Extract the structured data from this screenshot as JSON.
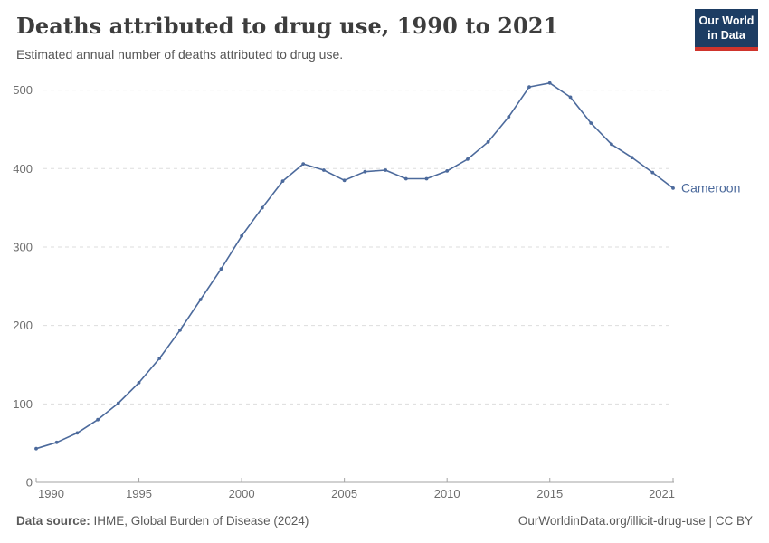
{
  "header": {
    "title": "Deaths attributed to drug use, 1990 to 2021",
    "subtitle": "Estimated annual number of deaths attributed to drug use.",
    "logo_line1": "Our World",
    "logo_line2": "in Data"
  },
  "footer": {
    "source_label": "Data source:",
    "source_text": " IHME, Global Burden of Disease (2024)",
    "attribution": "OurWorldinData.org/illicit-drug-use | CC BY"
  },
  "colors": {
    "line": "#4C6A9C",
    "entity_label": "#4C6A9C",
    "grid": "#dddddd",
    "axis": "#a3a3a3",
    "tick_label": "#6e6e6e",
    "logo_bg": "#1d3d63",
    "logo_red": "#cf342c"
  },
  "chart_data": {
    "type": "line",
    "title": "Deaths attributed to drug use, 1990 to 2021",
    "subtitle": "Estimated annual number of deaths attributed to drug use.",
    "xlabel": "",
    "ylabel": "",
    "xlim": [
      1990,
      2021
    ],
    "ylim": [
      0,
      500
    ],
    "x_ticks": [
      1990,
      1995,
      2000,
      2005,
      2010,
      2015,
      2021
    ],
    "y_ticks": [
      0,
      100,
      200,
      300,
      400,
      500
    ],
    "grid": "horizontal-dashed",
    "legend_position": "end-of-line-label",
    "series": [
      {
        "name": "Cameroon",
        "x": [
          1990,
          1991,
          1992,
          1993,
          1994,
          1995,
          1996,
          1997,
          1998,
          1999,
          2000,
          2001,
          2002,
          2003,
          2004,
          2005,
          2006,
          2007,
          2008,
          2009,
          2010,
          2011,
          2012,
          2013,
          2014,
          2015,
          2016,
          2017,
          2018,
          2019,
          2020,
          2021
        ],
        "values": [
          43,
          51,
          63,
          80,
          101,
          127,
          158,
          194,
          233,
          272,
          314,
          350,
          384,
          406,
          398,
          385,
          396,
          398,
          387,
          387,
          397,
          412,
          434,
          466,
          504,
          509,
          491,
          458,
          431,
          414,
          395,
          375
        ]
      }
    ]
  }
}
